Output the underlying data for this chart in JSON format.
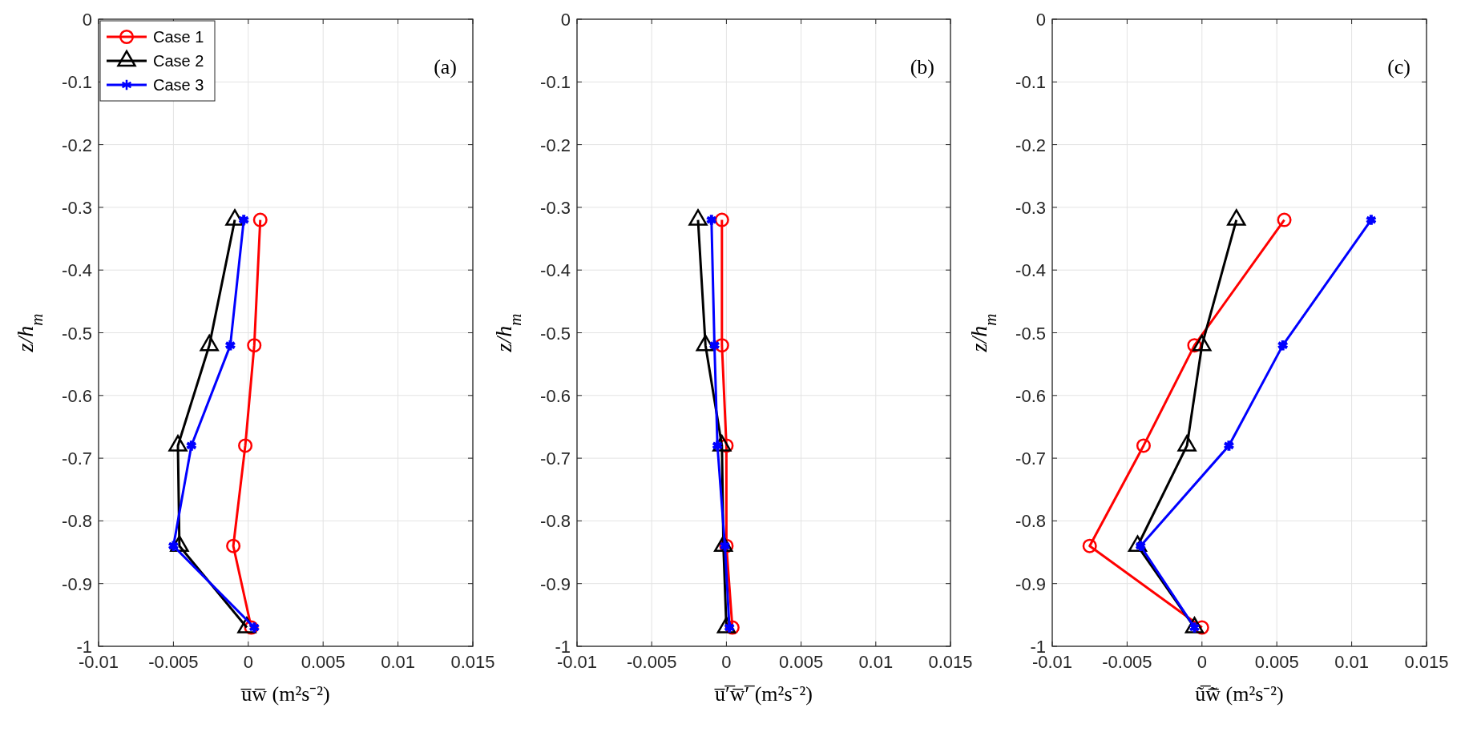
{
  "chart_data": [
    {
      "type": "line",
      "xlabel": "u̅w̅ (m²s⁻²)",
      "ylabel": "z/h$_{m}$",
      "annotations": [
        "(a)"
      ],
      "xlim": [
        -0.01,
        0.015
      ],
      "xticks": [
        -0.01,
        -0.005,
        0,
        0.005,
        0.01,
        0.015
      ],
      "ylim": [
        -1,
        0
      ],
      "yticks": [
        -1,
        -0.9,
        -0.8,
        -0.7,
        -0.6,
        -0.5,
        -0.4,
        -0.3,
        -0.2,
        -0.1,
        0
      ],
      "grid": true,
      "legend": "top left",
      "line_style": "solid",
      "series": [
        {
          "name": "Case 1",
          "color": "#ff0000",
          "marker": "circle",
          "x": [
            0.0008,
            0.0004,
            -0.0002,
            -0.001,
            0.0002
          ],
          "values": [
            -0.32,
            -0.52,
            -0.68,
            -0.84,
            -0.97
          ]
        },
        {
          "name": "Case 2",
          "color": "#000000",
          "marker": "triangle",
          "x": [
            -0.0009,
            -0.0026,
            -0.0047,
            -0.0046,
            -0.0001
          ],
          "values": [
            -0.32,
            -0.52,
            -0.68,
            -0.84,
            -0.97
          ]
        },
        {
          "name": "Case 3",
          "color": "#0000ff",
          "marker": "cross",
          "x": [
            -0.0003,
            -0.0012,
            -0.0038,
            -0.005,
            0.0004
          ],
          "values": [
            -0.32,
            -0.52,
            -0.68,
            -0.84,
            -0.97
          ]
        }
      ]
    },
    {
      "type": "line",
      "xlabel": "u̅′̅w̅′̅ (m²s⁻²)",
      "ylabel": "z/h$_{m}$",
      "annotations": [
        "(b)"
      ],
      "xlim": [
        -0.01,
        0.015
      ],
      "xticks": [
        -0.01,
        -0.005,
        0,
        0.005,
        0.01,
        0.015
      ],
      "ylim": [
        -1,
        0
      ],
      "yticks": [
        -1,
        -0.9,
        -0.8,
        -0.7,
        -0.6,
        -0.5,
        -0.4,
        -0.3,
        -0.2,
        -0.1,
        0
      ],
      "grid": true,
      "line_style": "solid",
      "series": [
        {
          "color": "#ff0000",
          "marker": "circle",
          "x": [
            -0.0003,
            -0.0003,
            0,
            0,
            0.0004
          ],
          "values": [
            -0.32,
            -0.52,
            -0.68,
            -0.84,
            -0.97
          ]
        },
        {
          "color": "#000000",
          "marker": "triangle",
          "x": [
            -0.0019,
            -0.0014,
            -0.0003,
            -0.0002,
            0
          ],
          "values": [
            -0.32,
            -0.52,
            -0.68,
            -0.84,
            -0.97
          ]
        },
        {
          "color": "#0000ff",
          "marker": "cross",
          "x": [
            -0.001,
            -0.0008,
            -0.0006,
            -0.0001,
            0.0002
          ],
          "values": [
            -0.32,
            -0.52,
            -0.68,
            -0.84,
            -0.97
          ]
        }
      ]
    },
    {
      "type": "line",
      "xlabel": "ũ̅w̃̅ (m²s⁻²)",
      "ylabel": "z/h$_{m}$",
      "annotations": [
        "(c)"
      ],
      "xlim": [
        -0.01,
        0.015
      ],
      "xticks": [
        -0.01,
        -0.005,
        0,
        0.005,
        0.01,
        0.015
      ],
      "ylim": [
        -1,
        0
      ],
      "yticks": [
        -1,
        -0.9,
        -0.8,
        -0.7,
        -0.6,
        -0.5,
        -0.4,
        -0.3,
        -0.2,
        -0.1,
        0
      ],
      "grid": true,
      "line_style": "solid",
      "series": [
        {
          "color": "#ff0000",
          "marker": "circle",
          "x": [
            0.0055,
            -0.0005,
            -0.0039,
            -0.0075,
            0
          ],
          "values": [
            -0.32,
            -0.52,
            -0.68,
            -0.84,
            -0.97
          ]
        },
        {
          "color": "#000000",
          "marker": "triangle",
          "x": [
            0.0023,
            0,
            -0.001,
            -0.0043,
            -0.0005
          ],
          "values": [
            -0.32,
            -0.52,
            -0.68,
            -0.84,
            -0.97
          ]
        },
        {
          "color": "#0000ff",
          "marker": "cross",
          "x": [
            0.0113,
            0.0054,
            0.0018,
            -0.0041,
            -0.0005
          ],
          "values": [
            -0.32,
            -0.52,
            -0.68,
            -0.84,
            -0.97
          ]
        }
      ]
    }
  ]
}
